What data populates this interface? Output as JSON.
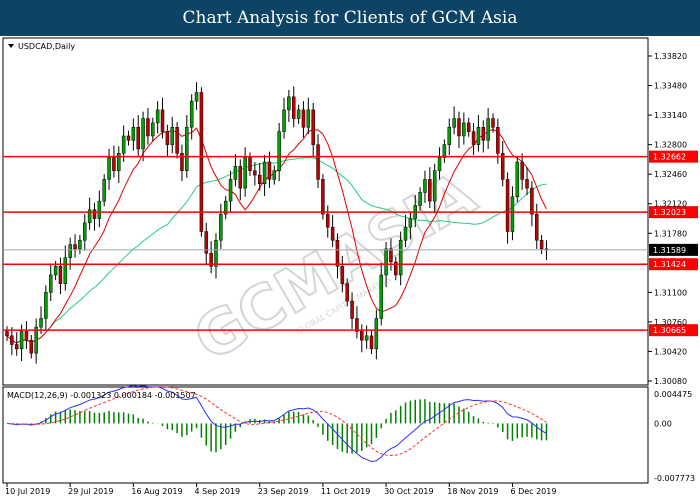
{
  "header": {
    "title": "Chart Analysis for Clients of GCM Asia"
  },
  "chart_data": [
    {
      "type": "candlestick",
      "symbol_label": "USDCAD,Daily",
      "ylim": [
        1.3008,
        1.3382
      ],
      "y_ticks": [
        "1.33820",
        "1.33480",
        "1.33140",
        "1.32800",
        "1.32460",
        "1.32120",
        "1.31780",
        "1.31100",
        "1.30760",
        "1.30420",
        "1.30080"
      ],
      "x_ticks": [
        "10 Jul 2019",
        "29 Jul 2019",
        "16 Aug 2019",
        "4 Sep 2019",
        "23 Sep 2019",
        "11 Oct 2019",
        "30 Oct 2019",
        "18 Nov 2019",
        "6 Dec 2019"
      ],
      "x_tick_bars": [
        0,
        13,
        26,
        39,
        52,
        65,
        78,
        91,
        104
      ],
      "closes": [
        1.306,
        1.305,
        1.3045,
        1.3065,
        1.3055,
        1.304,
        1.307,
        1.308,
        1.311,
        1.313,
        1.314,
        1.312,
        1.315,
        1.3165,
        1.316,
        1.317,
        1.319,
        1.3205,
        1.3195,
        1.3215,
        1.324,
        1.3265,
        1.325,
        1.327,
        1.329,
        1.3285,
        1.33,
        1.3275,
        1.331,
        1.329,
        1.3305,
        1.332,
        1.3295,
        1.328,
        1.33,
        1.327,
        1.325,
        1.33,
        1.333,
        1.334,
        1.318,
        1.3155,
        1.314,
        1.317,
        1.32,
        1.3215,
        1.324,
        1.3255,
        1.323,
        1.3265,
        1.325,
        1.3245,
        1.3235,
        1.326,
        1.324,
        1.325,
        1.3295,
        1.332,
        1.3335,
        1.331,
        1.332,
        1.33,
        1.332,
        1.328,
        1.324,
        1.32,
        1.3185,
        1.317,
        1.314,
        1.312,
        1.31,
        1.308,
        1.3065,
        1.3055,
        1.306,
        1.3045,
        1.308,
        1.313,
        1.316,
        1.3145,
        1.313,
        1.317,
        1.3185,
        1.3195,
        1.321,
        1.3225,
        1.324,
        1.3215,
        1.325,
        1.3265,
        1.328,
        1.33,
        1.331,
        1.329,
        1.3305,
        1.3295,
        1.328,
        1.33,
        1.3285,
        1.331,
        1.33,
        1.327,
        1.324,
        1.318,
        1.322,
        1.326,
        1.324,
        1.323,
        1.32,
        1.317,
        1.316,
        1.3159
      ],
      "colors": {
        "up": "#00a000",
        "down": "#c00000",
        "ma_fast": "#e00000",
        "ma_slow": "#20d080"
      },
      "levels": [
        {
          "value": "1.32662",
          "color": "#ff0000"
        },
        {
          "value": "1.32023",
          "color": "#ff0000"
        },
        {
          "value": "1.31424",
          "color": "#ff0000"
        },
        {
          "value": "1.30665",
          "color": "#ff0000"
        }
      ],
      "current_price": {
        "value": "1.31589",
        "color": "#000000"
      }
    },
    {
      "type": "macd",
      "title": "MACD(12,26,9) -0.001323 0.000184 -0.001507",
      "ylim": [
        -0.007773,
        0.004475
      ],
      "y_ticks": [
        "0.004475",
        "0.00",
        "-0.007773"
      ],
      "colors": {
        "histogram": "#008000",
        "main": "#3030ff",
        "signal": "#ff3030"
      }
    }
  ],
  "watermark": {
    "text": "GCMASIA",
    "subtext": "GLOBAL CAPITAL MARKETS"
  }
}
